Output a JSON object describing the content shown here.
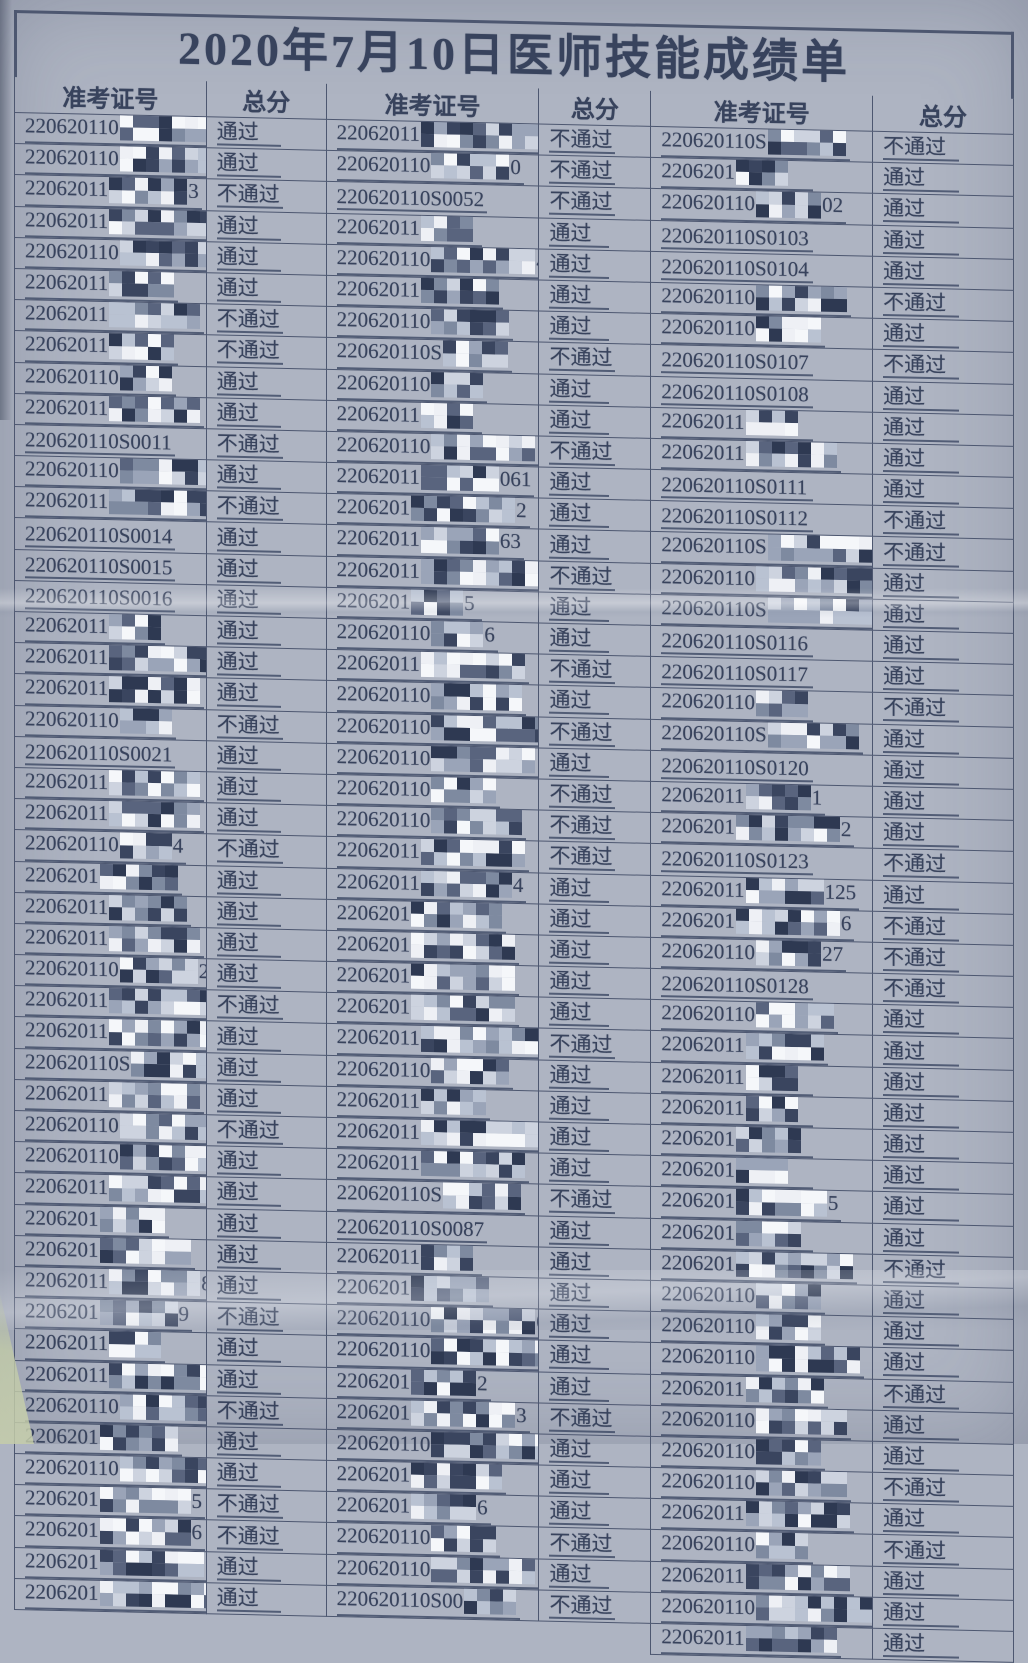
{
  "title": "2020年7月10日医师技能成绩单",
  "headers": [
    "准考证号",
    "总分",
    "准考证号",
    "总分",
    "准考证号",
    "总分"
  ],
  "pass_label": "通过",
  "fail_label": "不通过",
  "row_count": 49,
  "colors": {
    "ink": "#38435d",
    "line": "#4d5770",
    "paper": "#c6cbd8",
    "mask_palette": [
      "#eef0f5",
      "#b9c2d2",
      "#3a455f",
      "#7e8aa0",
      "#f5f7fa",
      "#59647e",
      "#9aa4b8",
      "#2e3952",
      "#cdd3df"
    ]
  },
  "columns": {
    "left": [
      {
        "pre": "220620110",
        "mask": true,
        "post": "",
        "res": "通过"
      },
      {
        "pre": "220620110",
        "mask": true,
        "post": "",
        "res": "通过"
      },
      {
        "pre": "22062011",
        "mask": true,
        "post": "3",
        "res": "不通过"
      },
      {
        "pre": "22062011",
        "mask": true,
        "post": "",
        "res": "通过"
      },
      {
        "pre": "220620110",
        "mask": true,
        "post": "5",
        "res": "通过"
      },
      {
        "pre": "22062011",
        "mask": true,
        "post": "",
        "res": "通过"
      },
      {
        "pre": "22062011",
        "mask": true,
        "post": "",
        "res": "不通过"
      },
      {
        "pre": "22062011",
        "mask": true,
        "post": "",
        "res": "不通过"
      },
      {
        "pre": "220620110",
        "mask": true,
        "post": "",
        "res": "通过"
      },
      {
        "pre": "22062011",
        "mask": true,
        "post": "",
        "res": "通过"
      },
      {
        "pre": "220620110S0011",
        "mask": false,
        "post": "",
        "res": "不通过"
      },
      {
        "pre": "220620110",
        "mask": true,
        "post": "",
        "res": "通过"
      },
      {
        "pre": "22062011",
        "mask": true,
        "post": "",
        "res": "不通过"
      },
      {
        "pre": "220620110S0014",
        "mask": false,
        "post": "",
        "res": "通过"
      },
      {
        "pre": "220620110S0015",
        "mask": false,
        "post": "",
        "res": "通过"
      },
      {
        "pre": "220620110S0016",
        "mask": false,
        "post": "",
        "res": "通过"
      },
      {
        "pre": "22062011",
        "mask": true,
        "post": "",
        "res": "通过"
      },
      {
        "pre": "22062011",
        "mask": true,
        "post": "",
        "res": "通过"
      },
      {
        "pre": "22062011",
        "mask": true,
        "post": "",
        "res": "通过"
      },
      {
        "pre": "220620110",
        "mask": true,
        "post": "",
        "res": "不通过"
      },
      {
        "pre": "220620110S0021",
        "mask": false,
        "post": "",
        "res": "通过"
      },
      {
        "pre": "22062011",
        "mask": true,
        "post": "",
        "res": "通过"
      },
      {
        "pre": "22062011",
        "mask": true,
        "post": "",
        "res": "通过"
      },
      {
        "pre": "220620110",
        "mask": true,
        "post": "4",
        "res": "不通过"
      },
      {
        "pre": "2206201",
        "mask": true,
        "post": "",
        "res": "通过"
      },
      {
        "pre": "22062011",
        "mask": true,
        "post": "",
        "res": "通过"
      },
      {
        "pre": "22062011",
        "mask": true,
        "post": "",
        "res": "通过"
      },
      {
        "pre": "220620110",
        "mask": true,
        "post": "28",
        "res": "通过"
      },
      {
        "pre": "22062011",
        "mask": true,
        "post": "",
        "res": "不通过"
      },
      {
        "pre": "22062011",
        "mask": true,
        "post": "0",
        "res": "通过"
      },
      {
        "pre": "220620110S",
        "mask": true,
        "post": "1",
        "res": "通过"
      },
      {
        "pre": "22062011",
        "mask": true,
        "post": "",
        "res": "通过"
      },
      {
        "pre": "220620110",
        "mask": true,
        "post": "3",
        "res": "不通过"
      },
      {
        "pre": "220620110",
        "mask": true,
        "post": "",
        "res": "通过"
      },
      {
        "pre": "22062011",
        "mask": true,
        "post": "",
        "res": "通过"
      },
      {
        "pre": "2206201",
        "mask": true,
        "post": "",
        "res": "通过"
      },
      {
        "pre": "2206201",
        "mask": true,
        "post": "",
        "res": "通过"
      },
      {
        "pre": "22062011",
        "mask": true,
        "post": "8",
        "res": "通过"
      },
      {
        "pre": "2206201",
        "mask": true,
        "post": "9",
        "res": "不通过"
      },
      {
        "pre": "22062011",
        "mask": true,
        "post": "",
        "res": "通过"
      },
      {
        "pre": "22062011",
        "mask": true,
        "post": "",
        "res": "通过"
      },
      {
        "pre": "220620110",
        "mask": true,
        "post": "",
        "res": "不通过"
      },
      {
        "pre": "2206201",
        "mask": true,
        "post": "",
        "res": "通过"
      },
      {
        "pre": "220620110",
        "mask": true,
        "post": "4",
        "res": "通过"
      },
      {
        "pre": "2206201",
        "mask": true,
        "post": "5",
        "res": "不通过"
      },
      {
        "pre": "2206201",
        "mask": true,
        "post": "6",
        "res": "不通过"
      },
      {
        "pre": "2206201",
        "mask": true,
        "post": "",
        "res": "通过"
      },
      {
        "pre": "2206201",
        "mask": true,
        "post": "8",
        "res": "通过"
      },
      null
    ],
    "middle": [
      {
        "pre": "22062011",
        "mask": true,
        "post": "9",
        "res": "不通过"
      },
      {
        "pre": "220620110",
        "mask": true,
        "post": "0",
        "res": "不通过"
      },
      {
        "pre": "220620110S0052",
        "mask": false,
        "post": "",
        "res": "不通过"
      },
      {
        "pre": "22062011",
        "mask": true,
        "post": "",
        "res": "通过"
      },
      {
        "pre": "220620110",
        "mask": true,
        "post": "4",
        "res": "通过"
      },
      {
        "pre": "22062011",
        "mask": true,
        "post": "",
        "res": "通过"
      },
      {
        "pre": "220620110",
        "mask": true,
        "post": "",
        "res": "通过"
      },
      {
        "pre": "220620110S",
        "mask": true,
        "post": "",
        "res": "不通过"
      },
      {
        "pre": "220620110",
        "mask": true,
        "post": "",
        "res": "通过"
      },
      {
        "pre": "22062011",
        "mask": true,
        "post": "",
        "res": "通过"
      },
      {
        "pre": "220620110",
        "mask": true,
        "post": "",
        "res": "不通过"
      },
      {
        "pre": "22062011",
        "mask": true,
        "post": "061",
        "res": "通过"
      },
      {
        "pre": "2206201",
        "mask": true,
        "post": "2",
        "res": "通过"
      },
      {
        "pre": "22062011",
        "mask": true,
        "post": "63",
        "res": "通过"
      },
      {
        "pre": "22062011",
        "mask": true,
        "post": "4",
        "res": "不通过"
      },
      {
        "pre": "2206201",
        "mask": true,
        "post": "5",
        "res": "通过"
      },
      {
        "pre": "220620110",
        "mask": true,
        "post": "6",
        "res": "通过"
      },
      {
        "pre": "22062011",
        "mask": true,
        "post": "",
        "res": "不通过"
      },
      {
        "pre": "220620110",
        "mask": true,
        "post": "",
        "res": "通过"
      },
      {
        "pre": "220620110",
        "mask": true,
        "post": "",
        "res": "不通过"
      },
      {
        "pre": "220620110",
        "mask": true,
        "post": "",
        "res": "通过"
      },
      {
        "pre": "220620110",
        "mask": true,
        "post": "",
        "res": "不通过"
      },
      {
        "pre": "220620110",
        "mask": true,
        "post": "",
        "res": "不通过"
      },
      {
        "pre": "22062011",
        "mask": true,
        "post": "",
        "res": "不通过"
      },
      {
        "pre": "22062011",
        "mask": true,
        "post": "4",
        "res": "通过"
      },
      {
        "pre": "2206201",
        "mask": true,
        "post": "",
        "res": "通过"
      },
      {
        "pre": "2206201",
        "mask": true,
        "post": "",
        "res": "通过"
      },
      {
        "pre": "2206201",
        "mask": true,
        "post": "",
        "res": "通过"
      },
      {
        "pre": "2206201",
        "mask": true,
        "post": "",
        "res": "通过"
      },
      {
        "pre": "22062011",
        "mask": true,
        "post": "",
        "res": "不通过"
      },
      {
        "pre": "220620110",
        "mask": true,
        "post": "",
        "res": "通过"
      },
      {
        "pre": "22062011",
        "mask": true,
        "post": "",
        "res": "通过"
      },
      {
        "pre": "22062011",
        "mask": true,
        "post": "",
        "res": "通过"
      },
      {
        "pre": "22062011",
        "mask": true,
        "post": "",
        "res": "通过"
      },
      {
        "pre": "220620110S",
        "mask": true,
        "post": "",
        "res": "不通过"
      },
      {
        "pre": "220620110S0087",
        "mask": false,
        "post": "",
        "res": "通过"
      },
      {
        "pre": "22062011",
        "mask": true,
        "post": "",
        "res": "通过"
      },
      {
        "pre": "2206201",
        "mask": true,
        "post": "",
        "res": "通过"
      },
      {
        "pre": "220620110",
        "mask": true,
        "post": "0",
        "res": "通过"
      },
      {
        "pre": "220620110",
        "mask": true,
        "post": "091",
        "res": "通过"
      },
      {
        "pre": "2206201",
        "mask": true,
        "post": "2",
        "res": "通过"
      },
      {
        "pre": "2206201",
        "mask": true,
        "post": "3",
        "res": "不通过"
      },
      {
        "pre": "220620110",
        "mask": true,
        "post": "94",
        "res": "通过"
      },
      {
        "pre": "2206201",
        "mask": true,
        "post": "",
        "res": "通过"
      },
      {
        "pre": "2206201",
        "mask": true,
        "post": "6",
        "res": "通过"
      },
      {
        "pre": "220620110",
        "mask": true,
        "post": "",
        "res": "不通过"
      },
      {
        "pre": "220620110",
        "mask": true,
        "post": "",
        "res": "通过"
      },
      {
        "pre": "220620110S00",
        "mask": true,
        "post": "",
        "res": "不通过"
      },
      null
    ],
    "right": [
      {
        "pre": "220620110S",
        "mask": true,
        "post": "",
        "res": "不通过"
      },
      {
        "pre": "2206201",
        "mask": true,
        "post": "",
        "res": "通过"
      },
      {
        "pre": "220620110",
        "mask": true,
        "post": "02",
        "res": "通过"
      },
      {
        "pre": "220620110S0103",
        "mask": false,
        "post": "",
        "res": "通过"
      },
      {
        "pre": "220620110S0104",
        "mask": false,
        "post": "",
        "res": "通过"
      },
      {
        "pre": "220620110",
        "mask": true,
        "post": "",
        "res": "不通过"
      },
      {
        "pre": "220620110",
        "mask": true,
        "post": "",
        "res": "通过"
      },
      {
        "pre": "220620110S0107",
        "mask": false,
        "post": "",
        "res": "不通过"
      },
      {
        "pre": "220620110S0108",
        "mask": false,
        "post": "",
        "res": "通过"
      },
      {
        "pre": "22062011",
        "mask": true,
        "post": "",
        "res": "通过"
      },
      {
        "pre": "22062011",
        "mask": true,
        "post": "",
        "res": "通过"
      },
      {
        "pre": "220620110S0111",
        "mask": false,
        "post": "",
        "res": "通过"
      },
      {
        "pre": "220620110S0112",
        "mask": false,
        "post": "",
        "res": "不通过"
      },
      {
        "pre": "220620110S",
        "mask": true,
        "post": "3",
        "res": "不通过"
      },
      {
        "pre": "220620110",
        "mask": true,
        "post": "",
        "res": "通过"
      },
      {
        "pre": "220620110S",
        "mask": true,
        "post": "",
        "res": "通过"
      },
      {
        "pre": "220620110S0116",
        "mask": false,
        "post": "",
        "res": "通过"
      },
      {
        "pre": "220620110S0117",
        "mask": false,
        "post": "",
        "res": "通过"
      },
      {
        "pre": "220620110",
        "mask": true,
        "post": "",
        "res": "不通过"
      },
      {
        "pre": "220620110S",
        "mask": true,
        "post": "",
        "res": "通过"
      },
      {
        "pre": "220620110S0120",
        "mask": false,
        "post": "",
        "res": "通过"
      },
      {
        "pre": "22062011",
        "mask": true,
        "post": "1",
        "res": "通过"
      },
      {
        "pre": "2206201",
        "mask": true,
        "post": "2",
        "res": "通过"
      },
      {
        "pre": "220620110S0123",
        "mask": false,
        "post": "",
        "res": "不通过"
      },
      {
        "pre": "22062011",
        "mask": true,
        "post": "125",
        "res": "通过"
      },
      {
        "pre": "2206201",
        "mask": true,
        "post": "6",
        "res": "不通过"
      },
      {
        "pre": "220620110",
        "mask": true,
        "post": "27",
        "res": "不通过"
      },
      {
        "pre": "220620110S0128",
        "mask": false,
        "post": "",
        "res": "不通过"
      },
      {
        "pre": "220620110",
        "mask": true,
        "post": "",
        "res": "通过"
      },
      {
        "pre": "22062011",
        "mask": true,
        "post": "",
        "res": "通过"
      },
      {
        "pre": "22062011",
        "mask": true,
        "post": "",
        "res": "通过"
      },
      {
        "pre": "22062011",
        "mask": true,
        "post": "",
        "res": "通过"
      },
      {
        "pre": "2206201",
        "mask": true,
        "post": "",
        "res": "通过"
      },
      {
        "pre": "2206201",
        "mask": true,
        "post": "",
        "res": "通过"
      },
      {
        "pre": "2206201",
        "mask": true,
        "post": "5",
        "res": "通过"
      },
      {
        "pre": "2206201",
        "mask": true,
        "post": "",
        "res": "通过"
      },
      {
        "pre": "2206201",
        "mask": true,
        "post": "",
        "res": "不通过"
      },
      {
        "pre": "220620110",
        "mask": true,
        "post": "",
        "res": "通过"
      },
      {
        "pre": "220620110",
        "mask": true,
        "post": "",
        "res": "通过"
      },
      {
        "pre": "220620110",
        "mask": true,
        "post": "",
        "res": "通过"
      },
      {
        "pre": "22062011",
        "mask": true,
        "post": "",
        "res": "不通过"
      },
      {
        "pre": "220620110",
        "mask": true,
        "post": "",
        "res": "通过"
      },
      {
        "pre": "220620110",
        "mask": true,
        "post": "",
        "res": "通过"
      },
      {
        "pre": "220620110",
        "mask": true,
        "post": "",
        "res": "不通过"
      },
      {
        "pre": "22062011",
        "mask": true,
        "post": "",
        "res": "通过"
      },
      {
        "pre": "220620110",
        "mask": true,
        "post": "",
        "res": "不通过"
      },
      {
        "pre": "22062011",
        "mask": true,
        "post": "",
        "res": "通过"
      },
      {
        "pre": "220620110",
        "mask": true,
        "post": "2",
        "res": "通过"
      },
      {
        "pre": "22062011",
        "mask": true,
        "post": "",
        "res": "通过"
      }
    ]
  }
}
